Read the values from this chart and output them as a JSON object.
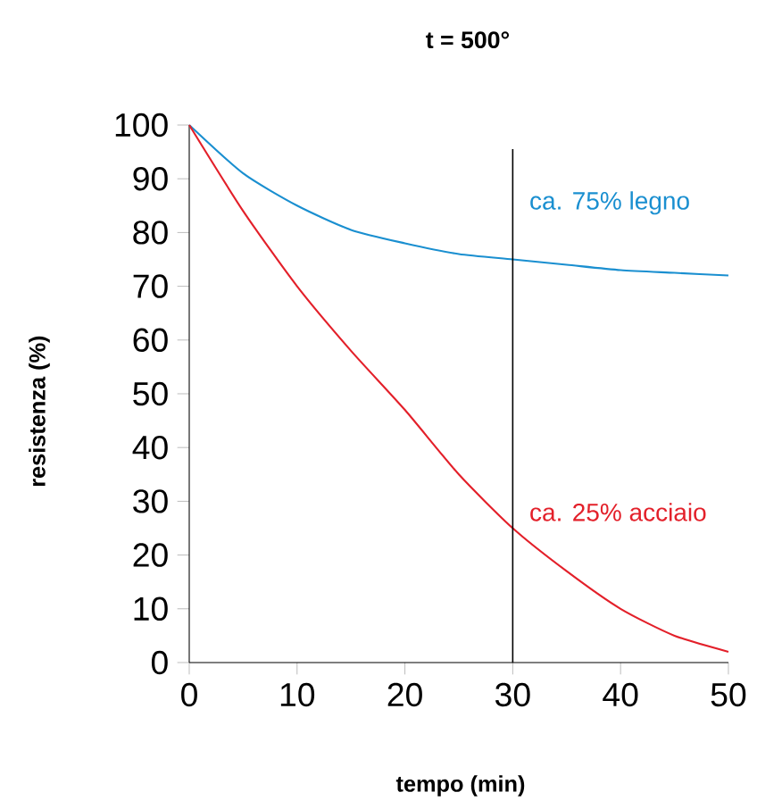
{
  "chart_data": {
    "type": "line",
    "title": "t = 500°",
    "xlabel": "tempo (min)",
    "ylabel": "resistenza (%)",
    "x": [
      0,
      5,
      10,
      15,
      20,
      25,
      30,
      35,
      40,
      45,
      50
    ],
    "series": [
      {
        "name": "ca. 75% legno",
        "color": "#1a8fd0",
        "values": [
          100,
          91,
          85,
          80.5,
          78,
          76,
          75,
          74,
          73,
          72.5,
          72
        ]
      },
      {
        "name": "ca. 25% acciaio",
        "color": "#e3202a",
        "values": [
          100,
          84,
          70,
          58,
          47,
          35,
          25,
          17,
          10,
          5,
          2
        ]
      }
    ],
    "xlim": [
      0,
      50
    ],
    "ylim": [
      0,
      100
    ],
    "xticks": [
      0,
      10,
      20,
      30,
      40,
      50
    ],
    "yticks": [
      0,
      10,
      20,
      30,
      40,
      50,
      60,
      70,
      80,
      90,
      100
    ],
    "ref_lines": [
      {
        "axis": "x",
        "value": 30,
        "color": "#000000"
      }
    ],
    "grid": false,
    "legend": false,
    "marker": "none",
    "line_style": "solid"
  }
}
